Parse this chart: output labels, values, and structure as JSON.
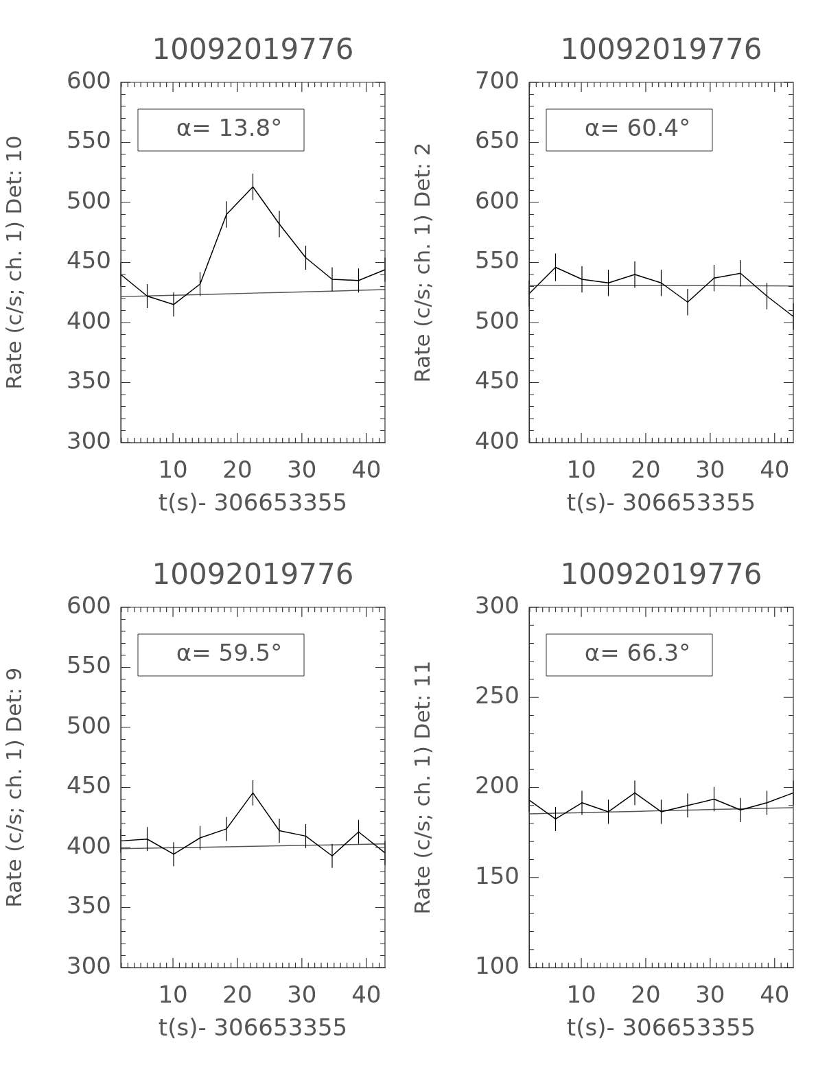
{
  "chart_data": [
    {
      "type": "line",
      "title": "10092019776",
      "xlabel": "t(s)- 306653355",
      "ylabel": "Rate (c/s; ch. 1) Det: 10",
      "annotations": [
        "α= 13.8°"
      ],
      "marker": "none",
      "x": [
        1.9,
        6.0,
        10.1,
        14.2,
        18.3,
        22.4,
        26.5,
        30.6,
        34.7,
        38.8,
        42.9
      ],
      "series": [
        {
          "color": "#000000",
          "values": [
            440,
            422,
            415,
            432,
            490,
            513,
            482,
            454,
            436,
            435,
            444
          ],
          "errors": [
            10,
            10,
            10,
            10,
            11,
            11,
            11,
            10,
            10,
            10,
            10
          ]
        },
        {
          "type": "line",
          "color": "#555555",
          "values": [
            421.5,
            422.1,
            422.7,
            423.3,
            423.9,
            424.5,
            425,
            425.6,
            426.2,
            426.8,
            427.4
          ]
        }
      ],
      "xlim": [
        1.9,
        42.9
      ],
      "ylim": [
        300,
        600
      ],
      "xticks": [
        {
          "value": 2,
          "label": null
        },
        {
          "value": 3,
          "label": null
        },
        {
          "value": 4,
          "label": null
        },
        {
          "value": 5,
          "label": null
        },
        {
          "value": 6,
          "label": null
        },
        {
          "value": 7,
          "label": null
        },
        {
          "value": 8,
          "label": null
        },
        {
          "value": 9,
          "label": null
        },
        10,
        {
          "value": 11,
          "label": null
        },
        {
          "value": 12,
          "label": null
        },
        {
          "value": 13,
          "label": null
        },
        {
          "value": 14,
          "label": null
        },
        {
          "value": 15,
          "label": null
        },
        {
          "value": 16,
          "label": null
        },
        {
          "value": 17,
          "label": null
        },
        {
          "value": 18,
          "label": null
        },
        {
          "value": 19,
          "label": null
        },
        20,
        {
          "value": 21,
          "label": null
        },
        {
          "value": 22,
          "label": null
        },
        {
          "value": 23,
          "label": null
        },
        {
          "value": 24,
          "label": null
        },
        {
          "value": 25,
          "label": null
        },
        {
          "value": 26,
          "label": null
        },
        {
          "value": 27,
          "label": null
        },
        {
          "value": 28,
          "label": null
        },
        {
          "value": 29,
          "label": null
        },
        30,
        {
          "value": 31,
          "label": null
        },
        {
          "value": 32,
          "label": null
        },
        {
          "value": 33,
          "label": null
        },
        {
          "value": 34,
          "label": null
        },
        {
          "value": 35,
          "label": null
        },
        {
          "value": 36,
          "label": null
        },
        {
          "value": 37,
          "label": null
        },
        {
          "value": 38,
          "label": null
        },
        {
          "value": 39,
          "label": null
        },
        40,
        {
          "value": 41,
          "label": null
        },
        {
          "value": 42,
          "label": null
        }
      ],
      "yticks": [
        300,
        {
          "value": 310,
          "label": null
        },
        {
          "value": 320,
          "label": null
        },
        {
          "value": 330,
          "label": null
        },
        {
          "value": 340,
          "label": null
        },
        350,
        {
          "value": 360,
          "label": null
        },
        {
          "value": 370,
          "label": null
        },
        {
          "value": 380,
          "label": null
        },
        {
          "value": 390,
          "label": null
        },
        400,
        {
          "value": 410,
          "label": null
        },
        {
          "value": 420,
          "label": null
        },
        {
          "value": 430,
          "label": null
        },
        {
          "value": 440,
          "label": null
        },
        450,
        {
          "value": 460,
          "label": null
        },
        {
          "value": 470,
          "label": null
        },
        {
          "value": 480,
          "label": null
        },
        {
          "value": 490,
          "label": null
        },
        500,
        {
          "value": 510,
          "label": null
        },
        {
          "value": 520,
          "label": null
        },
        {
          "value": 530,
          "label": null
        },
        {
          "value": 540,
          "label": null
        },
        550,
        {
          "value": 560,
          "label": null
        },
        {
          "value": 570,
          "label": null
        },
        {
          "value": 580,
          "label": null
        },
        {
          "value": 590,
          "label": null
        },
        600
      ]
    },
    {
      "type": "line",
      "title": "10092019776",
      "xlabel": "t(s)- 306653355",
      "ylabel": "Rate (c/s; ch. 1) Det: 2",
      "annotations": [
        "α= 60.4°"
      ],
      "marker": "none",
      "x": [
        1.9,
        6.0,
        10.1,
        14.2,
        18.3,
        22.4,
        26.5,
        30.6,
        34.7,
        38.8,
        42.9
      ],
      "series": [
        {
          "color": "#000000",
          "values": [
            524,
            546,
            536,
            533,
            540,
            533,
            517,
            537,
            541,
            522,
            505
          ],
          "errors": [
            11,
            11.5,
            11,
            11,
            11,
            11,
            11,
            11,
            11,
            11,
            11
          ]
        },
        {
          "type": "line",
          "color": "#555555",
          "values": [
            531,
            531,
            530.9,
            530.9,
            530.8,
            530.8,
            530.7,
            530.7,
            530.6,
            530.6,
            530.5
          ]
        }
      ],
      "xlim": [
        1.9,
        42.9
      ],
      "ylim": [
        400,
        700
      ],
      "xticks": [
        {
          "value": 2,
          "label": null
        },
        {
          "value": 3,
          "label": null
        },
        {
          "value": 4,
          "label": null
        },
        {
          "value": 5,
          "label": null
        },
        {
          "value": 6,
          "label": null
        },
        {
          "value": 7,
          "label": null
        },
        {
          "value": 8,
          "label": null
        },
        {
          "value": 9,
          "label": null
        },
        10,
        {
          "value": 11,
          "label": null
        },
        {
          "value": 12,
          "label": null
        },
        {
          "value": 13,
          "label": null
        },
        {
          "value": 14,
          "label": null
        },
        {
          "value": 15,
          "label": null
        },
        {
          "value": 16,
          "label": null
        },
        {
          "value": 17,
          "label": null
        },
        {
          "value": 18,
          "label": null
        },
        {
          "value": 19,
          "label": null
        },
        20,
        {
          "value": 21,
          "label": null
        },
        {
          "value": 22,
          "label": null
        },
        {
          "value": 23,
          "label": null
        },
        {
          "value": 24,
          "label": null
        },
        {
          "value": 25,
          "label": null
        },
        {
          "value": 26,
          "label": null
        },
        {
          "value": 27,
          "label": null
        },
        {
          "value": 28,
          "label": null
        },
        {
          "value": 29,
          "label": null
        },
        30,
        {
          "value": 31,
          "label": null
        },
        {
          "value": 32,
          "label": null
        },
        {
          "value": 33,
          "label": null
        },
        {
          "value": 34,
          "label": null
        },
        {
          "value": 35,
          "label": null
        },
        {
          "value": 36,
          "label": null
        },
        {
          "value": 37,
          "label": null
        },
        {
          "value": 38,
          "label": null
        },
        {
          "value": 39,
          "label": null
        },
        40,
        {
          "value": 41,
          "label": null
        },
        {
          "value": 42,
          "label": null
        }
      ],
      "yticks": [
        400,
        {
          "value": 410,
          "label": null
        },
        {
          "value": 420,
          "label": null
        },
        {
          "value": 430,
          "label": null
        },
        {
          "value": 440,
          "label": null
        },
        450,
        {
          "value": 460,
          "label": null
        },
        {
          "value": 470,
          "label": null
        },
        {
          "value": 480,
          "label": null
        },
        {
          "value": 490,
          "label": null
        },
        500,
        {
          "value": 510,
          "label": null
        },
        {
          "value": 520,
          "label": null
        },
        {
          "value": 530,
          "label": null
        },
        {
          "value": 540,
          "label": null
        },
        550,
        {
          "value": 560,
          "label": null
        },
        {
          "value": 570,
          "label": null
        },
        {
          "value": 580,
          "label": null
        },
        {
          "value": 590,
          "label": null
        },
        600,
        {
          "value": 610,
          "label": null
        },
        {
          "value": 620,
          "label": null
        },
        {
          "value": 630,
          "label": null
        },
        {
          "value": 640,
          "label": null
        },
        650,
        {
          "value": 660,
          "label": null
        },
        {
          "value": 670,
          "label": null
        },
        {
          "value": 680,
          "label": null
        },
        {
          "value": 690,
          "label": null
        },
        700
      ]
    },
    {
      "type": "line",
      "title": "10092019776",
      "xlabel": "t(s)- 306653355",
      "ylabel": "Rate (c/s; ch. 1) Det: 9",
      "annotations": [
        "α= 59.5°"
      ],
      "marker": "none",
      "x": [
        1.9,
        6.0,
        10.1,
        14.2,
        18.3,
        22.4,
        26.5,
        30.6,
        34.7,
        38.8,
        42.9
      ],
      "series": [
        {
          "color": "#000000",
          "values": [
            405.5,
            407,
            394.5,
            408,
            415.5,
            445.5,
            414,
            409.5,
            393,
            413,
            395.5
          ],
          "errors": [
            10,
            10,
            10,
            10,
            10,
            10.5,
            10,
            10,
            10,
            10,
            10
          ]
        },
        {
          "type": "line",
          "color": "#555555",
          "values": [
            399,
            399.4,
            399.8,
            400.2,
            400.6,
            401,
            401.4,
            401.8,
            402.2,
            402.6,
            403
          ]
        }
      ],
      "xlim": [
        1.9,
        42.9
      ],
      "ylim": [
        300,
        600
      ],
      "xticks": [
        {
          "value": 2,
          "label": null
        },
        {
          "value": 3,
          "label": null
        },
        {
          "value": 4,
          "label": null
        },
        {
          "value": 5,
          "label": null
        },
        {
          "value": 6,
          "label": null
        },
        {
          "value": 7,
          "label": null
        },
        {
          "value": 8,
          "label": null
        },
        {
          "value": 9,
          "label": null
        },
        10,
        {
          "value": 11,
          "label": null
        },
        {
          "value": 12,
          "label": null
        },
        {
          "value": 13,
          "label": null
        },
        {
          "value": 14,
          "label": null
        },
        {
          "value": 15,
          "label": null
        },
        {
          "value": 16,
          "label": null
        },
        {
          "value": 17,
          "label": null
        },
        {
          "value": 18,
          "label": null
        },
        {
          "value": 19,
          "label": null
        },
        20,
        {
          "value": 21,
          "label": null
        },
        {
          "value": 22,
          "label": null
        },
        {
          "value": 23,
          "label": null
        },
        {
          "value": 24,
          "label": null
        },
        {
          "value": 25,
          "label": null
        },
        {
          "value": 26,
          "label": null
        },
        {
          "value": 27,
          "label": null
        },
        {
          "value": 28,
          "label": null
        },
        {
          "value": 29,
          "label": null
        },
        30,
        {
          "value": 31,
          "label": null
        },
        {
          "value": 32,
          "label": null
        },
        {
          "value": 33,
          "label": null
        },
        {
          "value": 34,
          "label": null
        },
        {
          "value": 35,
          "label": null
        },
        {
          "value": 36,
          "label": null
        },
        {
          "value": 37,
          "label": null
        },
        {
          "value": 38,
          "label": null
        },
        {
          "value": 39,
          "label": null
        },
        40,
        {
          "value": 41,
          "label": null
        },
        {
          "value": 42,
          "label": null
        }
      ],
      "yticks": [
        300,
        {
          "value": 310,
          "label": null
        },
        {
          "value": 320,
          "label": null
        },
        {
          "value": 330,
          "label": null
        },
        {
          "value": 340,
          "label": null
        },
        350,
        {
          "value": 360,
          "label": null
        },
        {
          "value": 370,
          "label": null
        },
        {
          "value": 380,
          "label": null
        },
        {
          "value": 390,
          "label": null
        },
        400,
        {
          "value": 410,
          "label": null
        },
        {
          "value": 420,
          "label": null
        },
        {
          "value": 430,
          "label": null
        },
        {
          "value": 440,
          "label": null
        },
        450,
        {
          "value": 460,
          "label": null
        },
        {
          "value": 470,
          "label": null
        },
        {
          "value": 480,
          "label": null
        },
        {
          "value": 490,
          "label": null
        },
        500,
        {
          "value": 510,
          "label": null
        },
        {
          "value": 520,
          "label": null
        },
        {
          "value": 530,
          "label": null
        },
        {
          "value": 540,
          "label": null
        },
        550,
        {
          "value": 560,
          "label": null
        },
        {
          "value": 570,
          "label": null
        },
        {
          "value": 580,
          "label": null
        },
        {
          "value": 590,
          "label": null
        },
        600
      ]
    },
    {
      "type": "line",
      "title": "10092019776",
      "xlabel": "t(s)- 306653355",
      "ylabel": "Rate (c/s; ch. 1) Det: 11",
      "annotations": [
        "α= 66.3°"
      ],
      "marker": "none",
      "x": [
        1.9,
        6.0,
        10.1,
        14.2,
        18.3,
        22.4,
        26.5,
        30.6,
        34.7,
        38.8,
        42.9
      ],
      "series": [
        {
          "color": "#000000",
          "values": [
            193,
            182.5,
            191.5,
            186.5,
            197,
            186.5,
            190,
            193.5,
            187.5,
            191.5,
            197
          ],
          "errors": [
            6.5,
            6.7,
            6.7,
            6.7,
            6.8,
            6.7,
            6.7,
            6.8,
            6.7,
            6.7,
            6.8
          ]
        },
        {
          "type": "line",
          "color": "#555555",
          "values": [
            185.3,
            185.7,
            186,
            186.4,
            186.7,
            187.1,
            187.4,
            187.8,
            188.1,
            188.5,
            188.8
          ]
        }
      ],
      "xlim": [
        1.9,
        42.9
      ],
      "ylim": [
        100,
        300
      ],
      "xticks": [
        {
          "value": 2,
          "label": null
        },
        {
          "value": 3,
          "label": null
        },
        {
          "value": 4,
          "label": null
        },
        {
          "value": 5,
          "label": null
        },
        {
          "value": 6,
          "label": null
        },
        {
          "value": 7,
          "label": null
        },
        {
          "value": 8,
          "label": null
        },
        {
          "value": 9,
          "label": null
        },
        10,
        {
          "value": 11,
          "label": null
        },
        {
          "value": 12,
          "label": null
        },
        {
          "value": 13,
          "label": null
        },
        {
          "value": 14,
          "label": null
        },
        {
          "value": 15,
          "label": null
        },
        {
          "value": 16,
          "label": null
        },
        {
          "value": 17,
          "label": null
        },
        {
          "value": 18,
          "label": null
        },
        {
          "value": 19,
          "label": null
        },
        20,
        {
          "value": 21,
          "label": null
        },
        {
          "value": 22,
          "label": null
        },
        {
          "value": 23,
          "label": null
        },
        {
          "value": 24,
          "label": null
        },
        {
          "value": 25,
          "label": null
        },
        {
          "value": 26,
          "label": null
        },
        {
          "value": 27,
          "label": null
        },
        {
          "value": 28,
          "label": null
        },
        {
          "value": 29,
          "label": null
        },
        30,
        {
          "value": 31,
          "label": null
        },
        {
          "value": 32,
          "label": null
        },
        {
          "value": 33,
          "label": null
        },
        {
          "value": 34,
          "label": null
        },
        {
          "value": 35,
          "label": null
        },
        {
          "value": 36,
          "label": null
        },
        {
          "value": 37,
          "label": null
        },
        {
          "value": 38,
          "label": null
        },
        {
          "value": 39,
          "label": null
        },
        40,
        {
          "value": 41,
          "label": null
        },
        {
          "value": 42,
          "label": null
        }
      ],
      "yticks": [
        100,
        {
          "value": 110,
          "label": null
        },
        {
          "value": 120,
          "label": null
        },
        {
          "value": 130,
          "label": null
        },
        {
          "value": 140,
          "label": null
        },
        150,
        {
          "value": 160,
          "label": null
        },
        {
          "value": 170,
          "label": null
        },
        {
          "value": 180,
          "label": null
        },
        {
          "value": 190,
          "label": null
        },
        200,
        {
          "value": 210,
          "label": null
        },
        {
          "value": 220,
          "label": null
        },
        {
          "value": 230,
          "label": null
        },
        {
          "value": 240,
          "label": null
        },
        250,
        {
          "value": 260,
          "label": null
        },
        {
          "value": 270,
          "label": null
        },
        {
          "value": 280,
          "label": null
        },
        {
          "value": 290,
          "label": null
        },
        300
      ]
    }
  ]
}
